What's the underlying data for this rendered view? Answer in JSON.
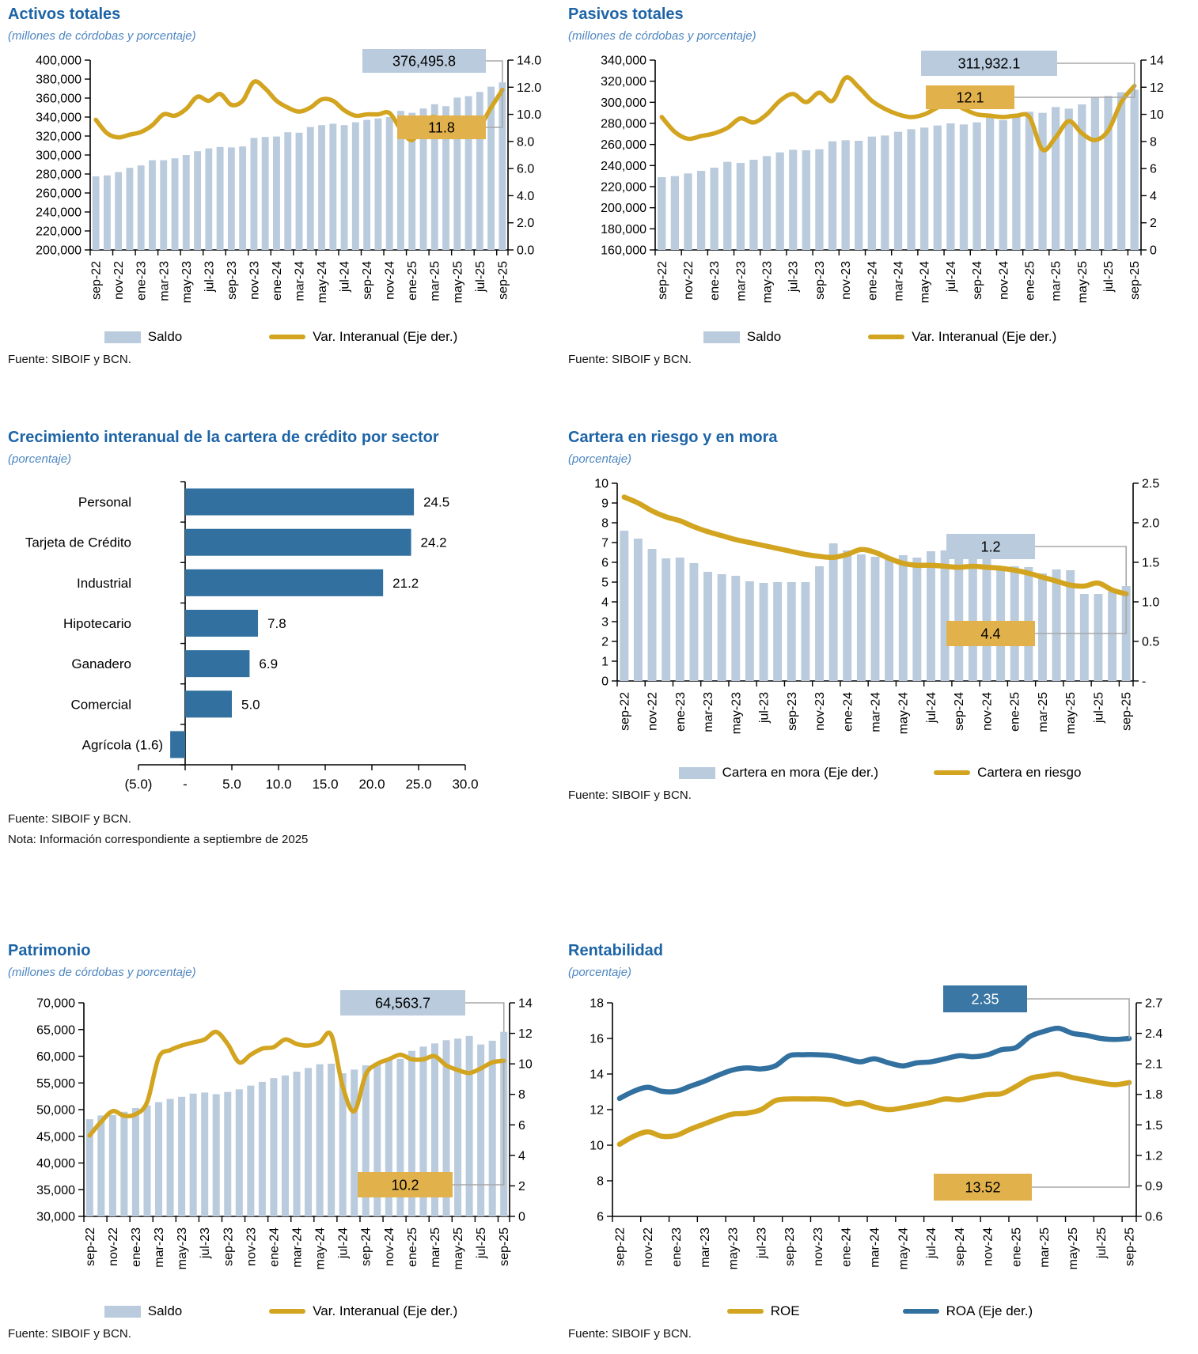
{
  "colors": {
    "title": "#1d64a7",
    "subtitle": "#4e87c1",
    "bar_light_blue": "#b9cbdc",
    "gold": "#d2a41f",
    "steelblue": "#31709f",
    "callout_blue": "#b9cbdc",
    "callout_gold": "#e1b14c",
    "steelblue_box": "#3a77a5",
    "leader": "#a8a8a8",
    "axis": "#000000"
  },
  "chart_data": [
    {
      "id": "activos",
      "type": "combo_bar_line",
      "title": "Activos totales",
      "subtitle": "(millones de córdobas y porcentaje)",
      "source": "Fuente: SIBOIF y BCN.",
      "x_tick_labels": [
        "sep-22",
        "nov-22",
        "ene-23",
        "mar-23",
        "may-23",
        "jul-23",
        "sep-23",
        "nov-23",
        "ene-24",
        "mar-24",
        "may-24",
        "jul-24",
        "sep-24",
        "nov-24",
        "ene-25",
        "mar-25",
        "may-25",
        "jul-25",
        "sep-25"
      ],
      "left_axis": {
        "min": 200000,
        "max": 400000,
        "tick_labels": [
          "400,000",
          "380,000",
          "360,000",
          "340,000",
          "320,000",
          "300,000",
          "280,000",
          "260,000",
          "240,000",
          "220,000",
          "200,000"
        ]
      },
      "right_axis": {
        "min": 0,
        "max": 14,
        "tick_labels": [
          "14.0",
          "12.0",
          "10.0",
          "8.0",
          "6.0",
          "4.0",
          "2.0",
          "0.0"
        ]
      },
      "series": [
        {
          "name": "Saldo",
          "kind": "bar",
          "axis": "left",
          "color": "#b9cbdc",
          "values": [
            277500,
            278500,
            282000,
            286500,
            289000,
            294500,
            294500,
            296500,
            300000,
            304000,
            307000,
            308500,
            308000,
            309000,
            318000,
            319000,
            319500,
            324000,
            323500,
            329500,
            331500,
            333000,
            331500,
            334500,
            337000,
            338500,
            340000,
            346500,
            344500,
            349000,
            353500,
            351500,
            360500,
            362000,
            366500,
            372000,
            376495.8
          ]
        },
        {
          "name": "Var. Interanual (Eje der.)",
          "kind": "line",
          "axis": "right",
          "color": "#d2a41f",
          "values": [
            9.6,
            8.6,
            8.3,
            8.5,
            8.7,
            9.2,
            10.0,
            9.9,
            10.4,
            11.3,
            11.0,
            11.5,
            10.7,
            11.0,
            12.4,
            11.9,
            11.0,
            10.5,
            10.2,
            10.5,
            11.1,
            11.0,
            10.3,
            9.9,
            10.0,
            10.0,
            10.1,
            8.9,
            8.1,
            9.3,
            9.8,
            8.9,
            8.7,
            9.4,
            9.2,
            10.5,
            11.8
          ]
        }
      ],
      "callouts": [
        {
          "label": "376,495.8",
          "series": 0,
          "style": "lightblue"
        },
        {
          "label": "11.8",
          "series": 1,
          "style": "gold"
        }
      ],
      "legend": [
        {
          "series": 0
        },
        {
          "series": 1
        }
      ]
    },
    {
      "id": "pasivos",
      "type": "combo_bar_line",
      "title": "Pasivos totales",
      "subtitle": "(millones de córdobas y porcentaje)",
      "source": "Fuente: SIBOIF y BCN.",
      "x_tick_labels": [
        "sep-22",
        "nov-22",
        "ene-23",
        "mar-23",
        "may-23",
        "jul-23",
        "sep-23",
        "nov-23",
        "ene-24",
        "mar-24",
        "may-24",
        "jul-24",
        "sep-24",
        "nov-24",
        "ene-25",
        "mar-25",
        "may-25",
        "jul-25",
        "sep-25"
      ],
      "left_axis": {
        "min": 160000,
        "max": 340000,
        "tick_labels": [
          "340,000",
          "320,000",
          "300,000",
          "280,000",
          "260,000",
          "240,000",
          "220,000",
          "200,000",
          "180,000",
          "160,000"
        ]
      },
      "right_axis": {
        "min": 0,
        "max": 14,
        "tick_labels": [
          "14",
          "12",
          "10",
          "8",
          "6",
          "4",
          "2",
          "0"
        ]
      },
      "series": [
        {
          "name": "Saldo",
          "kind": "bar",
          "axis": "left",
          "color": "#b9cbdc",
          "values": [
            229000,
            230000,
            232500,
            235000,
            238000,
            243500,
            242500,
            245500,
            249000,
            252500,
            255000,
            254500,
            255500,
            263000,
            264000,
            263500,
            267500,
            268500,
            272000,
            274500,
            276000,
            278000,
            280000,
            279000,
            281000,
            287000,
            283000,
            286500,
            291000,
            290000,
            295500,
            294000,
            298000,
            304500,
            306000,
            309500,
            311932.1
          ]
        },
        {
          "name": "Var. Interanual (Eje der.)",
          "kind": "line",
          "axis": "right",
          "color": "#d2a41f",
          "values": [
            9.8,
            8.7,
            8.2,
            8.4,
            8.6,
            9.0,
            9.7,
            9.4,
            10.0,
            11.0,
            11.5,
            10.9,
            11.6,
            11.0,
            12.7,
            12.0,
            11.0,
            10.4,
            10.0,
            9.8,
            10.0,
            10.5,
            10.9,
            10.4,
            10.0,
            9.9,
            9.8,
            9.9,
            9.8,
            7.4,
            8.3,
            9.5,
            8.6,
            8.1,
            8.8,
            10.9,
            12.1
          ]
        }
      ],
      "callouts": [
        {
          "label": "311,932.1",
          "series": 0,
          "style": "lightblue"
        },
        {
          "label": "12.1",
          "series": 1,
          "style": "gold"
        }
      ],
      "legend": [
        {
          "series": 0
        },
        {
          "series": 1
        }
      ]
    },
    {
      "id": "sector",
      "type": "bar_horizontal",
      "title": "Crecimiento interanual de la cartera de crédito por sector",
      "subtitle": "(porcentaje)",
      "source": "Fuente: SIBOIF y BCN.",
      "note": "Nota: Información correspondiente a septiembre de 2025",
      "categories": [
        "Personal",
        "Tarjeta de Crédito",
        "Industrial",
        "Hipotecario",
        "Ganadero",
        "Comercial",
        "Agrícola"
      ],
      "values": [
        24.5,
        24.2,
        21.2,
        7.8,
        6.9,
        5.0,
        -1.6
      ],
      "value_labels": [
        "24.5",
        "24.2",
        "21.2",
        "7.8",
        "6.9",
        "5.0",
        "(1.6)"
      ],
      "bar_color": "#31709f",
      "x_axis": {
        "min": -5,
        "max": 30,
        "tick_values": [
          -5,
          0,
          5,
          10,
          15,
          20,
          25,
          30
        ],
        "tick_labels": [
          "(5.0)",
          "-",
          "5.0",
          "10.0",
          "15.0",
          "20.0",
          "25.0",
          "30.0"
        ]
      }
    },
    {
      "id": "cartera",
      "type": "combo_bar_line",
      "title": "Cartera en riesgo y en mora",
      "subtitle": "(porcentaje)",
      "source": "Fuente: SIBOIF y BCN.",
      "x_tick_labels": [
        "sep-22",
        "nov-22",
        "ene-23",
        "mar-23",
        "may-23",
        "jul-23",
        "sep-23",
        "nov-23",
        "ene-24",
        "mar-24",
        "may-24",
        "jul-24",
        "sep-24",
        "nov-24",
        "ene-25",
        "mar-25",
        "may-25",
        "jul-25",
        "sep-25"
      ],
      "left_axis": {
        "min": 0,
        "max": 10,
        "tick_labels": [
          "10",
          "9",
          "8",
          "7",
          "6",
          "5",
          "4",
          "3",
          "2",
          "1",
          "0"
        ]
      },
      "right_axis": {
        "min": 0,
        "max": 2.5,
        "tick_labels": [
          "2.5",
          "2.0",
          "1.5",
          "1.0",
          "0.5",
          "-"
        ]
      },
      "series": [
        {
          "name": "Cartera en mora (Eje der.)",
          "kind": "bar",
          "axis": "right",
          "color": "#b9cbdc",
          "values": [
            1.9,
            1.8,
            1.67,
            1.55,
            1.56,
            1.49,
            1.38,
            1.35,
            1.33,
            1.26,
            1.24,
            1.25,
            1.25,
            1.25,
            1.45,
            1.74,
            1.65,
            1.6,
            1.57,
            1.55,
            1.59,
            1.56,
            1.64,
            1.65,
            1.67,
            1.6,
            1.56,
            1.43,
            1.45,
            1.44,
            1.36,
            1.41,
            1.4,
            1.1,
            1.1,
            1.13,
            1.2
          ]
        },
        {
          "name": "Cartera en riesgo",
          "kind": "line",
          "axis": "left",
          "color": "#d2a41f",
          "values": [
            9.3,
            9.0,
            8.6,
            8.3,
            8.1,
            7.8,
            7.55,
            7.35,
            7.15,
            7.0,
            6.85,
            6.7,
            6.55,
            6.4,
            6.3,
            6.25,
            6.4,
            6.65,
            6.5,
            6.2,
            5.95,
            5.85,
            5.85,
            5.8,
            5.75,
            5.8,
            5.75,
            5.7,
            5.6,
            5.45,
            5.25,
            5.05,
            4.85,
            4.8,
            4.95,
            4.6,
            4.4
          ]
        }
      ],
      "callouts": [
        {
          "label": "1.2",
          "series": 0,
          "style": "lightblue"
        },
        {
          "label": "4.4",
          "series": 1,
          "style": "gold"
        }
      ],
      "legend": [
        {
          "series": 0
        },
        {
          "series": 1
        }
      ]
    },
    {
      "id": "patrimonio",
      "type": "combo_bar_line",
      "title": "Patrimonio",
      "subtitle": "(millones de córdobas y porcentaje)",
      "source": "Fuente: SIBOIF y BCN.",
      "x_tick_labels": [
        "sep-22",
        "nov-22",
        "ene-23",
        "mar-23",
        "may-23",
        "jul-23",
        "sep-23",
        "nov-23",
        "ene-24",
        "mar-24",
        "may-24",
        "jul-24",
        "sep-24",
        "nov-24",
        "ene-25",
        "mar-25",
        "may-25",
        "jul-25",
        "sep-25"
      ],
      "left_axis": {
        "min": 30000,
        "max": 70000,
        "tick_labels": [
          "70,000",
          "65,000",
          "60,000",
          "55,000",
          "50,000",
          "45,000",
          "40,000",
          "35,000",
          "30,000"
        ]
      },
      "right_axis": {
        "min": 0,
        "max": 14,
        "tick_labels": [
          "14",
          "12",
          "10",
          "8",
          "6",
          "4",
          "2",
          "0"
        ]
      },
      "series": [
        {
          "name": "Saldo",
          "kind": "bar",
          "axis": "left",
          "color": "#b9cbdc",
          "values": [
            48200,
            48900,
            49000,
            49600,
            50300,
            50800,
            51400,
            52000,
            52400,
            53000,
            53200,
            52900,
            53300,
            53800,
            54500,
            55200,
            55900,
            56400,
            57100,
            57800,
            58500,
            58600,
            56800,
            57500,
            58300,
            58800,
            59500,
            59500,
            61000,
            61800,
            62400,
            63000,
            63300,
            63800,
            62200,
            62900,
            64563.7
          ]
        },
        {
          "name": "Var. Interanual (Eje der.)",
          "kind": "line",
          "axis": "right",
          "color": "#d2a41f",
          "values": [
            5.3,
            6.2,
            6.9,
            6.6,
            6.7,
            7.5,
            10.4,
            10.9,
            11.2,
            11.4,
            11.6,
            12.1,
            11.3,
            10.1,
            10.6,
            11.0,
            11.1,
            11.6,
            11.3,
            11.2,
            11.4,
            11.9,
            8.5,
            6.9,
            9.3,
            10.0,
            10.3,
            10.6,
            10.3,
            10.3,
            10.5,
            9.9,
            9.6,
            9.4,
            9.7,
            10.1,
            10.2
          ]
        }
      ],
      "callouts": [
        {
          "label": "64,563.7",
          "series": 0,
          "style": "lightblue"
        },
        {
          "label": "10.2",
          "series": 1,
          "style": "gold"
        }
      ],
      "legend": [
        {
          "series": 0
        },
        {
          "series": 1
        }
      ]
    },
    {
      "id": "rentabilidad",
      "type": "line_dual",
      "title": "Rentabilidad",
      "subtitle": "(porcentaje)",
      "source": "Fuente: SIBOIF y BCN.",
      "x_tick_labels": [
        "sep-22",
        "nov-22",
        "ene-23",
        "mar-23",
        "may-23",
        "jul-23",
        "sep-23",
        "nov-23",
        "ene-24",
        "mar-24",
        "may-24",
        "jul-24",
        "sep-24",
        "nov-24",
        "ene-25",
        "mar-25",
        "may-25",
        "jul-25",
        "sep-25"
      ],
      "left_axis": {
        "min": 6,
        "max": 18,
        "tick_labels": [
          "18",
          "16",
          "14",
          "12",
          "10",
          "8",
          "6"
        ]
      },
      "right_axis": {
        "min": 0.6,
        "max": 2.7,
        "tick_labels": [
          "2.7",
          "2.4",
          "2.1",
          "1.8",
          "1.5",
          "1.2",
          "0.9",
          "0.6"
        ]
      },
      "series": [
        {
          "name": "ROE",
          "kind": "line",
          "axis": "left",
          "color": "#d2a41f",
          "values": [
            10.05,
            10.5,
            10.75,
            10.5,
            10.55,
            10.9,
            11.2,
            11.5,
            11.75,
            11.8,
            12.0,
            12.5,
            12.6,
            12.6,
            12.6,
            12.55,
            12.3,
            12.4,
            12.15,
            12.0,
            12.1,
            12.25,
            12.4,
            12.6,
            12.55,
            12.7,
            12.85,
            12.9,
            13.3,
            13.75,
            13.9,
            14.0,
            13.8,
            13.65,
            13.5,
            13.4,
            13.52
          ]
        },
        {
          "name": "ROA (Eje der.)",
          "kind": "line",
          "axis": "right",
          "color": "#31709f",
          "values": [
            1.76,
            1.83,
            1.87,
            1.83,
            1.83,
            1.88,
            1.93,
            1.99,
            2.04,
            2.06,
            2.05,
            2.08,
            2.18,
            2.19,
            2.19,
            2.18,
            2.15,
            2.12,
            2.15,
            2.11,
            2.08,
            2.11,
            2.12,
            2.15,
            2.18,
            2.17,
            2.19,
            2.24,
            2.26,
            2.37,
            2.42,
            2.45,
            2.4,
            2.38,
            2.35,
            2.34,
            2.35
          ]
        }
      ],
      "callouts": [
        {
          "label": "2.35",
          "series": 1,
          "style": "steelblue"
        },
        {
          "label": "13.52",
          "series": 0,
          "style": "gold"
        }
      ],
      "legend": [
        {
          "series": 0
        },
        {
          "series": 1
        }
      ]
    }
  ]
}
